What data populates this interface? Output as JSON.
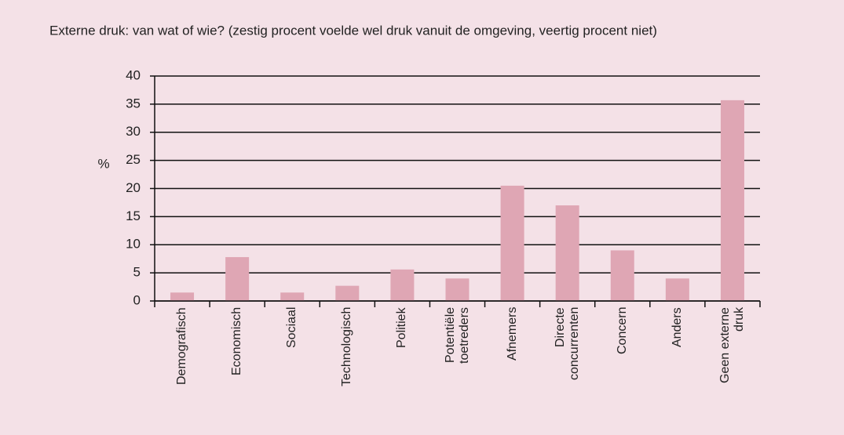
{
  "chart_data": {
    "type": "bar",
    "title": "Externe druk: van wat of wie?  (zestig procent voelde wel druk vanuit de omgeving, veertig procent niet)",
    "y_label": "%",
    "categories": [
      "Demografisch",
      "Economisch",
      "Sociaal",
      "Technologisch",
      "Politiek",
      "Potentiële toetreders",
      "Afnemers",
      "Directe concurrenten",
      "Concern",
      "Anders",
      "Geen externe druk"
    ],
    "values": [
      1.5,
      7.8,
      1.5,
      2.7,
      5.6,
      4,
      20.5,
      17,
      9,
      4,
      35.7
    ],
    "color": "#dfa6b4",
    "ylim": [
      0,
      40
    ],
    "yticks": [
      0,
      5,
      10,
      15,
      20,
      25,
      30,
      35,
      40
    ],
    "grid": true
  }
}
